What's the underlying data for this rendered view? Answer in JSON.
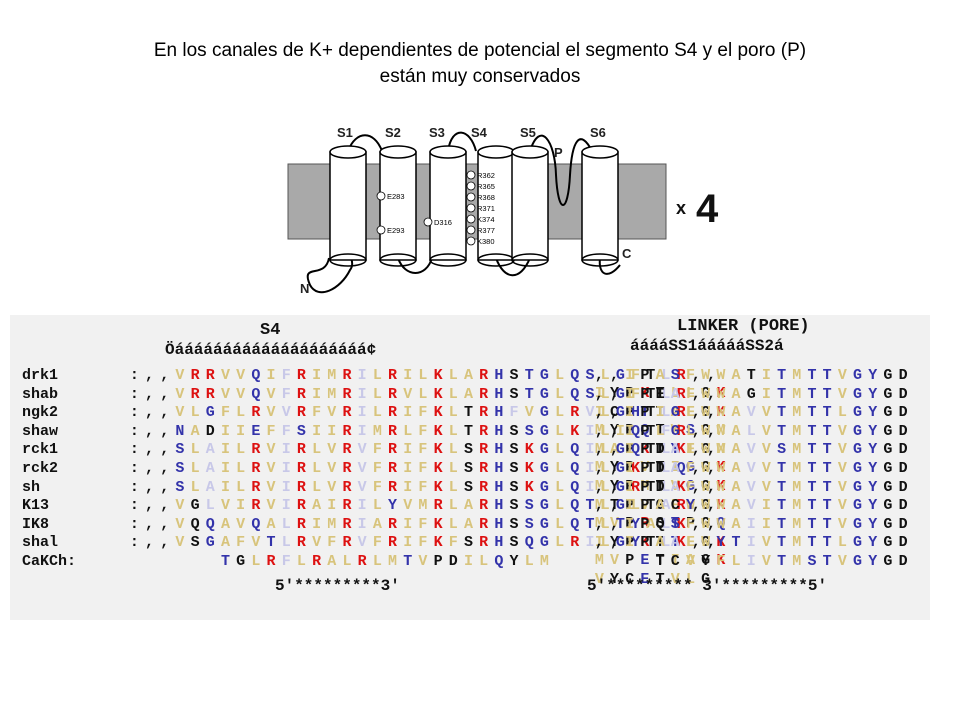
{
  "title_line1": "En los canales de K+ dependientes de potencial el segmento S4 y el poro (P)",
  "title_line2": "están muy conservados",
  "diagram": {
    "segments": [
      "S1",
      "S2",
      "S3",
      "S4",
      "S5",
      "S6"
    ],
    "pore_label": "P",
    "n_label": "N",
    "c_label": "C",
    "multiplier_x": "x",
    "multiplier_n": "4",
    "s2_charges": [
      "E283",
      "E293"
    ],
    "s3_charge": "D316",
    "s4_charges": [
      "R362",
      "R365",
      "R368",
      "R371",
      "K374",
      "R377",
      "K380"
    ],
    "colors": {
      "membrane": "#a9a9a9",
      "helix": "#ffffff",
      "line": "#000000"
    }
  },
  "alignment": {
    "s4_header": "S4",
    "s4_bracket": "Öáááááááááááááááááááá¢",
    "linker_header": "LINKER (PORE)",
    "linker_bracket": "ááááSS1áááááSS2á",
    "footer_left": "5'*********3'",
    "footer_right": "5'********* 3'*********5'",
    "rows": [
      {
        "name": "drk1",
        "left": ":,,VRRVVQIFRIMRILRILKLARHSTGLQSLGFTLR,,",
        "right": ",,IPASFWWATITMTTVGYGDIYPKTLLGK"
      },
      {
        "name": "shab",
        "left": ":,,VRRVVQVFRIMRILRVLKLARHSTGLQSLGFTLR,,",
        "right": ",,IPEAFWWAGITMTTVGYGDICPTTALGK"
      },
      {
        "name": "ngk2",
        "left": ":,,VLGFLRVVRFVRILRIFKLTRHFVGLRVLGHTLR,,",
        "right": ",,IPIGFWWAVVTMTTLGYGDMYPQTWSGM"
      },
      {
        "name": "shaw",
        "left": ":,,NADIIEFFSIIRIMRLFKLTRHSSGLKILIQTFR,,",
        "right": ",,IPLGLWWALVTMTTVGYGDMAPKTYIGM"
      },
      {
        "name": "rck1",
        "left": ":,,SLAILRVIRLVRVFRIFKLSRHSKGLQILGQTLK,,",
        "right": ",,IPDAFWWAVVSMTTVGYGDMYPVTIGGK"
      },
      {
        "name": "rck2",
        "left": ":,,SLAILRVIRLVRVFRIFKLSRHSKGLQILGKTLQ,,",
        "right": ",,IPDAFWWAVVTMTTVGYGDMYPMTVGGK"
      },
      {
        "name": "sh",
        "left": ":,,SLAILRVIRLVRVFRIFKLSRHSKGLQILGRTLK,,",
        "right": ",,IPDAFWWAVVTMTTVGYGDMTPVGFWGK"
      },
      {
        "name": "K13",
        "left": ":,,VGLVIRVIRAIRILYVMRLARHSSGLQTLGLTAR,,",
        "right": ",,IPACYWWAVITMTTVGYGDMVPRSTPGQ"
      },
      {
        "name": "IK8",
        "left": ":,,VQQAVQALRIMRIARIFKLARHSSGLQTLTYALK,,",
        "right": ",,IPQSFWWAIITMTTVGYGDIYPKTTLGK"
      },
      {
        "name": "shal",
        "left": ":,,VSGAFVTLRVFRVFRIFKFSRHSQGLRILGYTLK,,",
        "right": ",,IPAAFWYTIVTMTTLGYGDMVPETIAGK"
      },
      {
        "name": "CaKCh:",
        "left": "      TGLRFLRALRLMTVPDILQYLM",
        "right": "    TCVYFLIVTMSTVGYGDVYCETVLG"
      }
    ]
  }
}
